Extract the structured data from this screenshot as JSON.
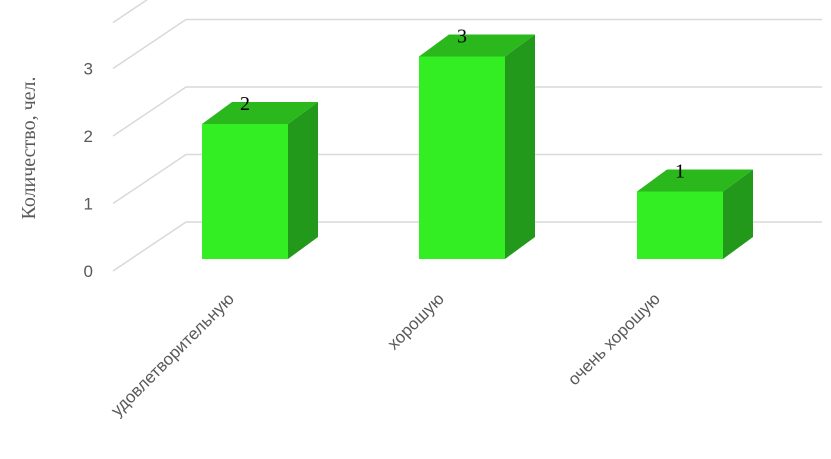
{
  "chart_data": {
    "type": "bar",
    "style": "3d-column",
    "categories": [
      "удовлетворительную",
      "хорошую",
      "очень хорошую"
    ],
    "values": [
      2,
      3,
      1
    ],
    "data_labels": [
      "2",
      "3",
      "1"
    ],
    "title": "",
    "xlabel": "",
    "ylabel": "Количество, чел.",
    "ylim": [
      0,
      3
    ],
    "yticks": [
      "0",
      "1",
      "2",
      "3"
    ],
    "grid": true,
    "legend": "none",
    "colors": {
      "front": "#33ee22",
      "top": "#2ab81c",
      "side": "#22991a",
      "grid": "#d9d9d9"
    }
  }
}
